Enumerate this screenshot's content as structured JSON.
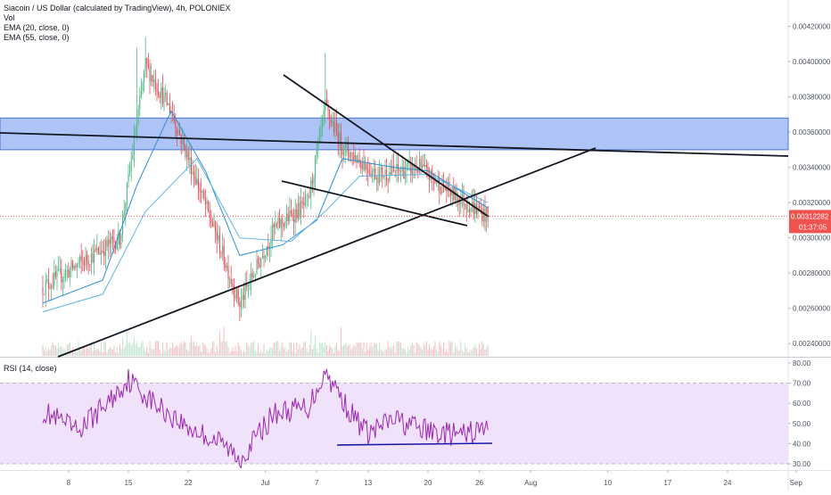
{
  "legend": {
    "title": "Siacoin / US Dollar (calculated by TradingView), 4h, POLONIEX",
    "vol": "Vol",
    "ema20": "EMA (20, close, 0)",
    "ema55": "EMA (55, close, 0)"
  },
  "rsi_legend": "RSI (14, close)",
  "price_tag": {
    "price": "0.00312282",
    "countdown": "01:37:05"
  },
  "colors": {
    "up": "#53b987",
    "down": "#eb4d5c",
    "ema20": "#2d8fd6",
    "ema55": "#5fb3e6",
    "zone": "#7c9ef0",
    "rsi": "#9c27b0",
    "rsi_band": "#f0e2fb",
    "price_tag": "#ef5350"
  },
  "chart_data": [
    {
      "type": "candlestick",
      "title": "Siacoin / US Dollar (calculated by TradingView), 4h, POLONIEX",
      "x_ticks": [
        "8",
        "15",
        "22",
        "Jul",
        "7",
        "13",
        "20",
        "26",
        "Aug",
        "10",
        "17",
        "24",
        "Sep"
      ],
      "y_ticks": [
        "0.00420000",
        "0.00400000",
        "0.00380000",
        "0.00360000",
        "0.00340000",
        "0.00320000",
        "0.00300000",
        "0.00280000",
        "0.00260000",
        "0.00240000"
      ],
      "ylim": [
        0.00232,
        0.00436
      ],
      "last_price": 0.00312282,
      "key_points": [
        {
          "date": "Jun 5",
          "price": 0.00272
        },
        {
          "date": "Jun 14",
          "price": 0.003
        },
        {
          "date": "Jun 17",
          "price": 0.00398
        },
        {
          "date": "Jun 20",
          "price": 0.00372
        },
        {
          "date": "Jun 25",
          "price": 0.00305
        },
        {
          "date": "Jun 28",
          "price": 0.00262
        },
        {
          "date": "Jul 2",
          "price": 0.00305
        },
        {
          "date": "Jul 6",
          "price": 0.0032
        },
        {
          "date": "Jul 8",
          "price": 0.00374
        },
        {
          "date": "Jul 10",
          "price": 0.00352
        },
        {
          "date": "Jul 14",
          "price": 0.00336
        },
        {
          "date": "Jul 19",
          "price": 0.0034
        },
        {
          "date": "Jul 22",
          "price": 0.00328
        },
        {
          "date": "Jul 27",
          "price": 0.00312
        }
      ],
      "resistance_zone": [
        0.0035,
        0.00368
      ],
      "ema_series": [
        {
          "name": "EMA (20, close, 0)",
          "points": [
            [
              "Jun 5",
              0.00263
            ],
            [
              "Jun 12",
              0.00276
            ],
            [
              "Jun 16",
              0.0033
            ],
            [
              "Jun 20",
              0.00372
            ],
            [
              "Jun 24",
              0.00338
            ],
            [
              "Jun 28",
              0.0029
            ],
            [
              "Jul 3",
              0.00296
            ],
            [
              "Jul 7",
              0.0031
            ],
            [
              "Jul 10",
              0.00345
            ],
            [
              "Jul 16",
              0.0034
            ],
            [
              "Jul 20",
              0.00338
            ],
            [
              "Jul 27",
              0.00317
            ]
          ]
        },
        {
          "name": "EMA (55, close, 0)",
          "points": [
            [
              "Jun 5",
              0.00258
            ],
            [
              "Jun 12",
              0.00268
            ],
            [
              "Jun 17",
              0.00315
            ],
            [
              "Jun 23",
              0.00345
            ],
            [
              "Jun 28",
              0.003
            ],
            [
              "Jul 4",
              0.00298
            ],
            [
              "Jul 8",
              0.00315
            ],
            [
              "Jul 12",
              0.00335
            ],
            [
              "Jul 20",
              0.00336
            ],
            [
              "Jul 27",
              0.0032
            ]
          ]
        }
      ]
    },
    {
      "type": "line",
      "title": "RSI (14, close)",
      "y_ticks": [
        "80.00",
        "70.00",
        "60.00",
        "50.00",
        "40.00",
        "30.00"
      ],
      "ylim": [
        26,
        82
      ],
      "band": [
        30,
        70
      ],
      "series": [
        {
          "name": "RSI (14, close)",
          "points": [
            [
              "Jun 5",
              56
            ],
            [
              "Jun 9",
              46
            ],
            [
              "Jun 13",
              62
            ],
            [
              "Jun 15",
              72
            ],
            [
              "Jun 18",
              60
            ],
            [
              "Jun 22",
              48
            ],
            [
              "Jun 26",
              40
            ],
            [
              "Jun 28",
              32
            ],
            [
              "Jul 2",
              55
            ],
            [
              "Jul 6",
              58
            ],
            [
              "Jul 8",
              76
            ],
            [
              "Jul 11",
              55
            ],
            [
              "Jul 13",
              45
            ],
            [
              "Jul 16",
              52
            ],
            [
              "Jul 20",
              46
            ],
            [
              "Jul 24",
              44
            ],
            [
              "Jul 27",
              48
            ]
          ]
        }
      ]
    }
  ]
}
